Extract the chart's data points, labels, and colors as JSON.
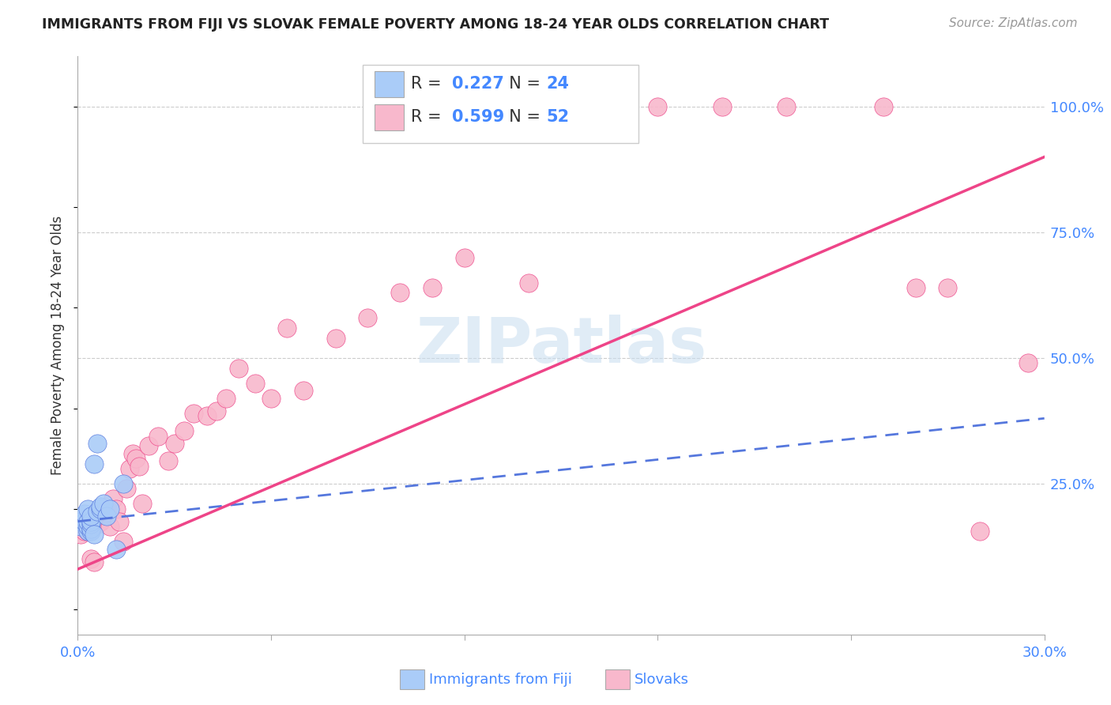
{
  "title": "IMMIGRANTS FROM FIJI VS SLOVAK FEMALE POVERTY AMONG 18-24 YEAR OLDS CORRELATION CHART",
  "source": "Source: ZipAtlas.com",
  "ylabel": "Female Poverty Among 18-24 Year Olds",
  "x_min": 0.0,
  "x_max": 0.3,
  "y_min": -0.05,
  "y_max": 1.1,
  "fiji_R": 0.227,
  "fiji_N": 24,
  "slovak_R": 0.599,
  "slovak_N": 52,
  "fiji_color": "#aaccf8",
  "slovak_color": "#f8b8cc",
  "fiji_line_color": "#5577dd",
  "slovak_line_color": "#ee4488",
  "fiji_scatter_x": [
    0.001,
    0.001,
    0.002,
    0.002,
    0.003,
    0.003,
    0.003,
    0.003,
    0.004,
    0.004,
    0.004,
    0.004,
    0.004,
    0.005,
    0.005,
    0.006,
    0.006,
    0.007,
    0.007,
    0.008,
    0.009,
    0.01,
    0.012,
    0.014
  ],
  "fiji_scatter_y": [
    0.175,
    0.165,
    0.175,
    0.19,
    0.155,
    0.165,
    0.175,
    0.2,
    0.155,
    0.16,
    0.17,
    0.175,
    0.185,
    0.15,
    0.29,
    0.195,
    0.33,
    0.2,
    0.205,
    0.21,
    0.185,
    0.2,
    0.12,
    0.25
  ],
  "slovak_scatter_x": [
    0.001,
    0.002,
    0.002,
    0.003,
    0.004,
    0.004,
    0.005,
    0.005,
    0.006,
    0.007,
    0.008,
    0.009,
    0.01,
    0.011,
    0.012,
    0.013,
    0.014,
    0.015,
    0.016,
    0.017,
    0.018,
    0.019,
    0.02,
    0.022,
    0.025,
    0.028,
    0.03,
    0.033,
    0.036,
    0.04,
    0.043,
    0.046,
    0.05,
    0.055,
    0.06,
    0.065,
    0.07,
    0.08,
    0.09,
    0.1,
    0.11,
    0.12,
    0.14,
    0.16,
    0.18,
    0.2,
    0.22,
    0.25,
    0.26,
    0.27,
    0.28,
    0.295
  ],
  "slovak_scatter_y": [
    0.15,
    0.155,
    0.165,
    0.155,
    0.1,
    0.175,
    0.18,
    0.095,
    0.17,
    0.175,
    0.195,
    0.195,
    0.165,
    0.22,
    0.2,
    0.175,
    0.135,
    0.24,
    0.28,
    0.31,
    0.3,
    0.285,
    0.21,
    0.325,
    0.345,
    0.295,
    0.33,
    0.355,
    0.39,
    0.385,
    0.395,
    0.42,
    0.48,
    0.45,
    0.42,
    0.56,
    0.435,
    0.54,
    0.58,
    0.63,
    0.64,
    0.7,
    0.65,
    1.0,
    1.0,
    1.0,
    1.0,
    1.0,
    0.64,
    0.64,
    0.155,
    0.49
  ],
  "fiji_line_x0": 0.0,
  "fiji_line_x1": 0.3,
  "fiji_line_y0": 0.175,
  "fiji_line_y1": 0.38,
  "slovak_line_x0": 0.0,
  "slovak_line_x1": 0.3,
  "slovak_line_y0": 0.08,
  "slovak_line_y1": 0.9,
  "watermark": "ZIPatlas",
  "background_color": "#ffffff",
  "grid_color": "#cccccc",
  "y_ticks": [
    0.0,
    0.25,
    0.5,
    0.75,
    1.0
  ],
  "y_tick_labels": [
    "",
    "25.0%",
    "50.0%",
    "75.0%",
    "100.0%"
  ],
  "x_tick_pos": [
    0.0,
    0.06,
    0.12,
    0.18,
    0.24,
    0.3
  ],
  "x_tick_labels": [
    "0.0%",
    "",
    "",
    "",
    "",
    "30.0%"
  ]
}
